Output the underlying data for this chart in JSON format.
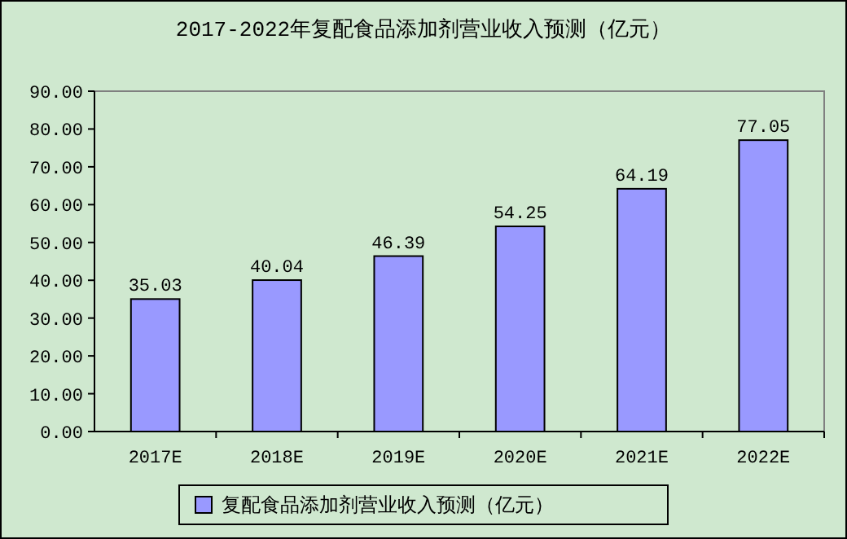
{
  "chart_data": {
    "type": "bar",
    "title": "2017-2022年复配食品添加剂营业收入预测（亿元）",
    "categories": [
      "2017E",
      "2018E",
      "2019E",
      "2020E",
      "2021E",
      "2022E"
    ],
    "series": [
      {
        "name": "复配食品添加剂营业收入预测（亿元）",
        "color": "#9999ff",
        "values": [
          35.03,
          40.04,
          46.39,
          54.25,
          64.19,
          77.05
        ]
      }
    ],
    "ylim": [
      0,
      90
    ],
    "yticks": [
      {
        "value": 0,
        "label": "0.00"
      },
      {
        "value": 10,
        "label": "10.00"
      },
      {
        "value": 20,
        "label": "20.00"
      },
      {
        "value": 30,
        "label": "30.00"
      },
      {
        "value": 40,
        "label": "40.00"
      },
      {
        "value": 50,
        "label": "50.00"
      },
      {
        "value": 60,
        "label": "60.00"
      },
      {
        "value": 70,
        "label": "70.00"
      },
      {
        "value": 80,
        "label": "80.00"
      },
      {
        "value": 90,
        "label": "90.00"
      }
    ],
    "data_labels": true,
    "legend": "bottom"
  }
}
